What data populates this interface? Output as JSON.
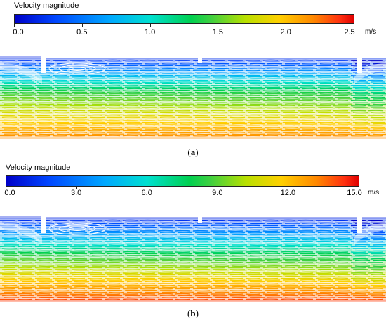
{
  "chart_data": [
    {
      "type": "heatmap",
      "panel_label": "a",
      "colorbar": {
        "title": "Velocity magnitude",
        "unit": "m/s",
        "range": [
          0.0,
          2.5
        ],
        "ticks": [
          "0.0",
          "0.5",
          "1.0",
          "1.5",
          "2.0",
          "2.5"
        ],
        "tick_values": [
          0.0,
          0.5,
          1.0,
          1.5,
          2.0,
          2.5
        ],
        "colors": [
          "#0000c8",
          "#00a8ff",
          "#00d050",
          "#ffd000",
          "#ff8800",
          "#e00000"
        ]
      },
      "field": {
        "description_values": "velocity increases from top (near 0 m/s in recirculation zones) to bottom (about 2.0–2.2 m/s)",
        "top_velocity": 0.1,
        "mid_velocity": 1.4,
        "bottom_velocity": 2.1
      }
    },
    {
      "type": "heatmap",
      "panel_label": "b",
      "colorbar": {
        "title": "Velocity magnitude",
        "unit": "m/s",
        "range": [
          0.0,
          15.0
        ],
        "ticks": [
          "0.0",
          "3.0",
          "6.0",
          "9.0",
          "12.0",
          "15.0"
        ],
        "tick_values": [
          0.0,
          3.0,
          6.0,
          9.0,
          12.0,
          15.0
        ],
        "colors": [
          "#0000c8",
          "#00a8ff",
          "#00d050",
          "#ffd000",
          "#ff8800",
          "#e00000"
        ]
      },
      "field": {
        "top_velocity": 0.5,
        "mid_velocity": 8.0,
        "bottom_velocity": 13.5
      }
    }
  ],
  "captions": {
    "a": "a",
    "b": "b"
  }
}
